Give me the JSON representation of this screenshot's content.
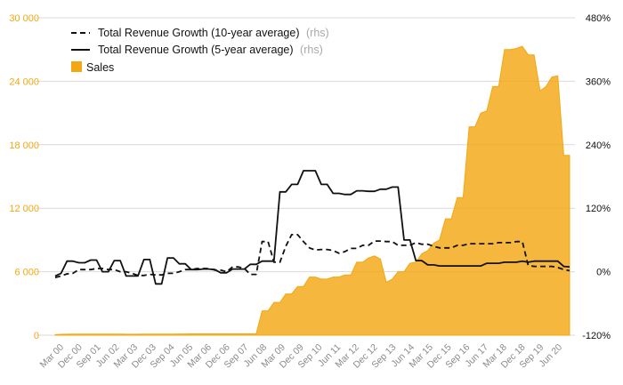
{
  "chart_data": {
    "type": "area",
    "x_tick_labels": [
      "Mar 00",
      "Dec 00",
      "Sep 01",
      "Jun 02",
      "Mar 03",
      "Dec 03",
      "Sep 04",
      "Jun 05",
      "Mar 06",
      "Dec 06",
      "Sep 07",
      "Jun 08",
      "Mar 09",
      "Dec 09",
      "Sep 10",
      "Jun 11",
      "Mar 12",
      "Dec 12",
      "Sep 13",
      "Jun 14",
      "Mar 15",
      "Dec 15",
      "Sep 16",
      "Jun 17",
      "Mar 18",
      "Dec 18",
      "Sep 19",
      "Jun 20"
    ],
    "y_left": {
      "ticks": [
        "30 000",
        "24 000",
        "18 000",
        "12 000",
        "6 000",
        "0"
      ],
      "ylim": [
        0,
        30000
      ],
      "color": "#f3a712"
    },
    "y_right": {
      "ticks": [
        "480%",
        "360%",
        "240%",
        "120%",
        "0%",
        "-120%"
      ],
      "ylim": [
        -120,
        480
      ]
    },
    "legend": {
      "position": "top-left",
      "entries": [
        {
          "label": "Total Revenue Growth (10-year average)",
          "suffix": "(rhs)",
          "style": "dashed"
        },
        {
          "label": "Total Revenue Growth (5-year average)",
          "suffix": "(rhs)",
          "style": "solid"
        },
        {
          "label": "Sales",
          "suffix": "",
          "style": "area"
        }
      ]
    },
    "series": [
      {
        "name": "Sales",
        "axis": "left",
        "color": "#f3a712",
        "values": [
          50,
          80,
          90,
          100,
          100,
          110,
          110,
          110,
          105,
          100,
          100,
          100,
          90,
          90,
          90,
          100,
          100,
          100,
          100,
          100,
          100,
          120,
          120,
          130,
          130,
          130,
          130,
          130,
          130,
          130,
          130,
          130,
          130,
          130,
          130,
          2300,
          2300,
          3100,
          3100,
          3900,
          3900,
          4600,
          4600,
          5500,
          5500,
          5300,
          5300,
          5500,
          5500,
          5700,
          5700,
          6900,
          6900,
          7300,
          7500,
          7200,
          5000,
          5300,
          6000,
          6000,
          6800,
          6900,
          7700,
          8000,
          8700,
          9000,
          11000,
          11000,
          13000,
          13000,
          19700,
          19700,
          21000,
          21200,
          23500,
          23500,
          27000,
          27000,
          27100,
          27300,
          26500,
          26500,
          23100,
          23500,
          24400,
          24500,
          17000,
          17000
        ]
      },
      {
        "name": "Total Revenue Growth (10-year average)",
        "axis": "right",
        "values": [
          -11,
          -8,
          -4,
          -3,
          4,
          4,
          4,
          6,
          6,
          4,
          4,
          0,
          0,
          -3,
          -7,
          -7,
          -5,
          -6,
          -6,
          -3,
          -3,
          0,
          4,
          4,
          6,
          6,
          6,
          3,
          3,
          0,
          9,
          9,
          6,
          -5,
          -5,
          57,
          57,
          18,
          18,
          48,
          70,
          70,
          57,
          45,
          41,
          42,
          42,
          40,
          35,
          38,
          44,
          44,
          50,
          50,
          58,
          58,
          57,
          57,
          50,
          50,
          50,
          55,
          52,
          52,
          48,
          45,
          45,
          45,
          50,
          50,
          53,
          53,
          53,
          53,
          53,
          55,
          55,
          55,
          57,
          57,
          12,
          10,
          10,
          10,
          10,
          8,
          4,
          2
        ]
      },
      {
        "name": "Total Revenue Growth (5-year average)",
        "axis": "right",
        "values": [
          -8,
          -3,
          20,
          20,
          17,
          17,
          22,
          22,
          0,
          0,
          21,
          21,
          -8,
          -8,
          -8,
          23,
          23,
          -23,
          -23,
          26,
          26,
          15,
          15,
          4,
          4,
          5,
          5,
          4,
          -2,
          -2,
          5,
          5,
          5,
          14,
          14,
          20,
          20,
          20,
          151,
          151,
          165,
          165,
          191,
          191,
          191,
          165,
          165,
          148,
          148,
          146,
          146,
          153,
          153,
          152,
          152,
          156,
          156,
          160,
          160,
          60,
          60,
          21,
          21,
          13,
          13,
          11,
          11,
          11,
          11,
          11,
          11,
          11,
          11,
          16,
          16,
          16,
          18,
          18,
          18,
          20,
          18,
          20,
          20,
          20,
          20,
          20,
          10,
          9
        ]
      }
    ]
  }
}
